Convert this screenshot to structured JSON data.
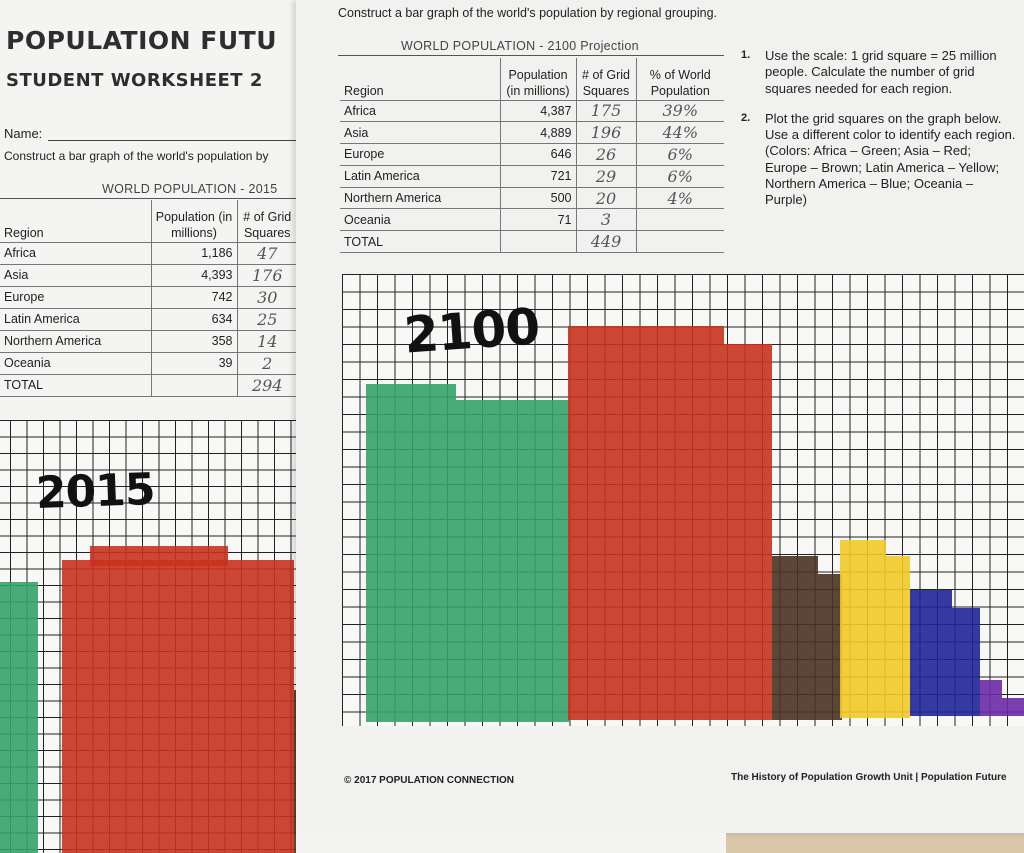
{
  "colors": {
    "africa": "#34a26a",
    "asia": "#c8321f",
    "europe": "#4a3222",
    "latin_america": "#f1c928",
    "northern_america": "#1f2597",
    "oceania": "#6b2aa7"
  },
  "back_sheet": {
    "title": "POPULATION FUTU",
    "subtitle": "STUDENT WORKSHEET 2",
    "name_label": "Name:",
    "instruction": "Construct a bar graph of the world's population by",
    "table_title": "WORLD POPULATION - 2015",
    "columns": [
      "Region",
      "Population (in millions)",
      "# of Grid Squares"
    ],
    "rows": [
      {
        "region": "Africa",
        "population": "1,186",
        "squares": "47"
      },
      {
        "region": "Asia",
        "population": "4,393",
        "squares": "176"
      },
      {
        "region": "Europe",
        "population": "742",
        "squares": "30"
      },
      {
        "region": "Latin America",
        "population": "634",
        "squares": "25"
      },
      {
        "region": "Northern America",
        "population": "358",
        "squares": "14"
      },
      {
        "region": "Oceania",
        "population": "39",
        "squares": "2"
      }
    ],
    "total": {
      "label": "TOTAL",
      "squares": "294"
    },
    "graph_label": "2015"
  },
  "front_sheet": {
    "instruction": "Construct a bar graph of the world's population by regional grouping.",
    "table_title": "WORLD POPULATION - 2100 Projection",
    "columns": [
      "Region",
      "Population (in millions)",
      "# of Grid Squares",
      "% of World Population"
    ],
    "rows": [
      {
        "region": "Africa",
        "population": "4,387",
        "squares": "175",
        "percent": "39%"
      },
      {
        "region": "Asia",
        "population": "4,889",
        "squares": "196",
        "percent": "44%"
      },
      {
        "region": "Europe",
        "population": "646",
        "squares": "26",
        "percent": "6%"
      },
      {
        "region": "Latin America",
        "population": "721",
        "squares": "29",
        "percent": "6%"
      },
      {
        "region": "Northern America",
        "population": "500",
        "squares": "20",
        "percent": "4%"
      },
      {
        "region": "Oceania",
        "population": "71",
        "squares": "3",
        "percent": ""
      }
    ],
    "total": {
      "label": "TOTAL",
      "squares": "449"
    },
    "steps": [
      {
        "num": "1.",
        "text": "Use the scale: 1 grid square = 25 million people. Calculate the number of grid squares needed for each region."
      },
      {
        "num": "2.",
        "text": "Plot the grid squares on the graph below. Use a different color to identify each region. (Colors: Africa – Green; Asia – Red; Europe – Brown; Latin America – Yellow; Northern America – Blue; Oceania – Purple)"
      }
    ],
    "graph_label": "2100",
    "footer_left": "© 2017 POPULATION CONNECTION",
    "footer_right": "The History of Population Growth Unit | Population Future"
  }
}
